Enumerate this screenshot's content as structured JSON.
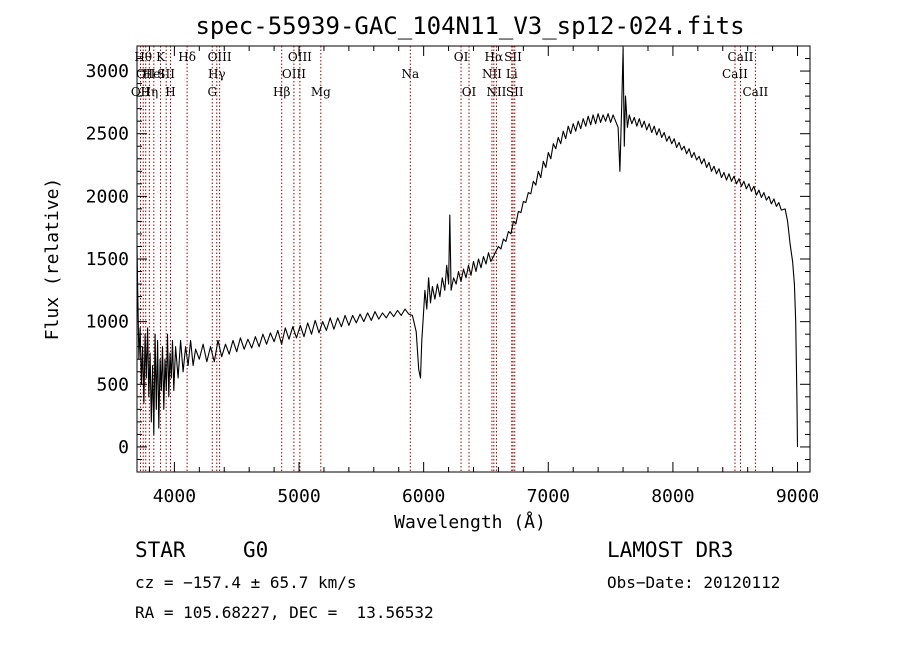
{
  "chart_data": {
    "type": "line",
    "title": "spec-55939-GAC_104N11_V3_sp12-024.fits",
    "xlabel": "Wavelength (Å)",
    "ylabel": "Flux (relative)",
    "xlim": [
      3700,
      9100
    ],
    "ylim": [
      -200,
      3200
    ],
    "x_ticks": [
      4000,
      5000,
      6000,
      7000,
      8000,
      9000
    ],
    "y_ticks": [
      0,
      500,
      1000,
      1500,
      2000,
      2500,
      3000
    ],
    "series": [
      {
        "name": "flux",
        "points": [
          [
            3700,
            1600
          ],
          [
            3705,
            1300
          ],
          [
            3715,
            700
          ],
          [
            3725,
            950
          ],
          [
            3735,
            500
          ],
          [
            3745,
            800
          ],
          [
            3755,
            350
          ],
          [
            3765,
            900
          ],
          [
            3775,
            550
          ],
          [
            3785,
            950
          ],
          [
            3795,
            400
          ],
          [
            3805,
            750
          ],
          [
            3815,
            200
          ],
          [
            3825,
            650
          ],
          [
            3835,
            100
          ],
          [
            3845,
            900
          ],
          [
            3855,
            300
          ],
          [
            3865,
            850
          ],
          [
            3875,
            150
          ],
          [
            3885,
            700
          ],
          [
            3895,
            450
          ],
          [
            3905,
            800
          ],
          [
            3915,
            300
          ],
          [
            3925,
            700
          ],
          [
            3935,
            450
          ],
          [
            3945,
            900
          ],
          [
            3955,
            400
          ],
          [
            3965,
            750
          ],
          [
            3975,
            550
          ],
          [
            3985,
            850
          ],
          [
            3995,
            450
          ],
          [
            4010,
            800
          ],
          [
            4030,
            550
          ],
          [
            4050,
            850
          ],
          [
            4070,
            600
          ],
          [
            4090,
            800
          ],
          [
            4110,
            650
          ],
          [
            4130,
            850
          ],
          [
            4150,
            650
          ],
          [
            4170,
            780
          ],
          [
            4200,
            700
          ],
          [
            4230,
            820
          ],
          [
            4260,
            680
          ],
          [
            4290,
            800
          ],
          [
            4320,
            680
          ],
          [
            4350,
            850
          ],
          [
            4380,
            720
          ],
          [
            4410,
            820
          ],
          [
            4440,
            740
          ],
          [
            4470,
            850
          ],
          [
            4500,
            760
          ],
          [
            4530,
            870
          ],
          [
            4560,
            780
          ],
          [
            4590,
            860
          ],
          [
            4620,
            790
          ],
          [
            4650,
            880
          ],
          [
            4680,
            800
          ],
          [
            4710,
            900
          ],
          [
            4740,
            820
          ],
          [
            4770,
            910
          ],
          [
            4800,
            840
          ],
          [
            4830,
            930
          ],
          [
            4860,
            820
          ],
          [
            4890,
            950
          ],
          [
            4920,
            860
          ],
          [
            4950,
            960
          ],
          [
            4980,
            870
          ],
          [
            5010,
            970
          ],
          [
            5040,
            880
          ],
          [
            5070,
            990
          ],
          [
            5100,
            900
          ],
          [
            5130,
            1010
          ],
          [
            5160,
            910
          ],
          [
            5190,
            1000
          ],
          [
            5220,
            930
          ],
          [
            5250,
            1030
          ],
          [
            5280,
            940
          ],
          [
            5310,
            1030
          ],
          [
            5340,
            960
          ],
          [
            5370,
            1050
          ],
          [
            5400,
            970
          ],
          [
            5430,
            1050
          ],
          [
            5460,
            990
          ],
          [
            5490,
            1060
          ],
          [
            5520,
            1000
          ],
          [
            5550,
            1070
          ],
          [
            5580,
            1010
          ],
          [
            5610,
            1080
          ],
          [
            5640,
            1020
          ],
          [
            5670,
            1070
          ],
          [
            5700,
            1030
          ],
          [
            5730,
            1080
          ],
          [
            5760,
            1040
          ],
          [
            5790,
            1090
          ],
          [
            5820,
            1050
          ],
          [
            5850,
            1100
          ],
          [
            5880,
            1060
          ],
          [
            5910,
            1050
          ],
          [
            5940,
            920
          ],
          [
            5960,
            620
          ],
          [
            5975,
            550
          ],
          [
            5985,
            850
          ],
          [
            5995,
            1000
          ],
          [
            6010,
            1250
          ],
          [
            6025,
            1100
          ],
          [
            6040,
            1350
          ],
          [
            6055,
            1150
          ],
          [
            6070,
            1280
          ],
          [
            6090,
            1180
          ],
          [
            6110,
            1300
          ],
          [
            6130,
            1200
          ],
          [
            6150,
            1350
          ],
          [
            6170,
            1250
          ],
          [
            6185,
            1450
          ],
          [
            6200,
            1300
          ],
          [
            6210,
            1850
          ],
          [
            6220,
            1250
          ],
          [
            6240,
            1350
          ],
          [
            6260,
            1300
          ],
          [
            6280,
            1400
          ],
          [
            6300,
            1320
          ],
          [
            6320,
            1420
          ],
          [
            6340,
            1350
          ],
          [
            6360,
            1450
          ],
          [
            6380,
            1370
          ],
          [
            6400,
            1480
          ],
          [
            6420,
            1400
          ],
          [
            6440,
            1500
          ],
          [
            6460,
            1430
          ],
          [
            6480,
            1520
          ],
          [
            6500,
            1460
          ],
          [
            6520,
            1550
          ],
          [
            6540,
            1480
          ],
          [
            6560,
            1520
          ],
          [
            6580,
            1560
          ],
          [
            6600,
            1600
          ],
          [
            6620,
            1580
          ],
          [
            6640,
            1660
          ],
          [
            6660,
            1640
          ],
          [
            6680,
            1720
          ],
          [
            6700,
            1700
          ],
          [
            6720,
            1800
          ],
          [
            6740,
            1780
          ],
          [
            6760,
            1880
          ],
          [
            6780,
            1870
          ],
          [
            6800,
            1960
          ],
          [
            6820,
            1950
          ],
          [
            6840,
            2030
          ],
          [
            6860,
            2020
          ],
          [
            6880,
            2120
          ],
          [
            6900,
            2090
          ],
          [
            6920,
            2200
          ],
          [
            6940,
            2150
          ],
          [
            6960,
            2280
          ],
          [
            6980,
            2230
          ],
          [
            7000,
            2350
          ],
          [
            7020,
            2300
          ],
          [
            7040,
            2420
          ],
          [
            7060,
            2380
          ],
          [
            7080,
            2470
          ],
          [
            7100,
            2420
          ],
          [
            7120,
            2520
          ],
          [
            7140,
            2460
          ],
          [
            7160,
            2560
          ],
          [
            7180,
            2500
          ],
          [
            7200,
            2580
          ],
          [
            7220,
            2520
          ],
          [
            7240,
            2600
          ],
          [
            7260,
            2540
          ],
          [
            7280,
            2620
          ],
          [
            7300,
            2560
          ],
          [
            7320,
            2640
          ],
          [
            7340,
            2570
          ],
          [
            7360,
            2650
          ],
          [
            7380,
            2580
          ],
          [
            7400,
            2660
          ],
          [
            7420,
            2590
          ],
          [
            7440,
            2650
          ],
          [
            7460,
            2600
          ],
          [
            7480,
            2660
          ],
          [
            7500,
            2590
          ],
          [
            7520,
            2650
          ],
          [
            7540,
            2600
          ],
          [
            7560,
            2550
          ],
          [
            7575,
            2200
          ],
          [
            7590,
            2750
          ],
          [
            7600,
            3180
          ],
          [
            7610,
            2400
          ],
          [
            7620,
            2800
          ],
          [
            7635,
            2550
          ],
          [
            7650,
            2650
          ],
          [
            7670,
            2580
          ],
          [
            7690,
            2630
          ],
          [
            7710,
            2560
          ],
          [
            7730,
            2620
          ],
          [
            7750,
            2550
          ],
          [
            7770,
            2600
          ],
          [
            7790,
            2530
          ],
          [
            7810,
            2580
          ],
          [
            7830,
            2510
          ],
          [
            7850,
            2560
          ],
          [
            7870,
            2490
          ],
          [
            7890,
            2540
          ],
          [
            7910,
            2470
          ],
          [
            7930,
            2510
          ],
          [
            7950,
            2440
          ],
          [
            7970,
            2480
          ],
          [
            7990,
            2420
          ],
          [
            8010,
            2460
          ],
          [
            8030,
            2390
          ],
          [
            8050,
            2430
          ],
          [
            8070,
            2370
          ],
          [
            8090,
            2400
          ],
          [
            8110,
            2340
          ],
          [
            8130,
            2380
          ],
          [
            8150,
            2310
          ],
          [
            8170,
            2350
          ],
          [
            8190,
            2290
          ],
          [
            8210,
            2320
          ],
          [
            8230,
            2260
          ],
          [
            8250,
            2300
          ],
          [
            8270,
            2230
          ],
          [
            8290,
            2270
          ],
          [
            8310,
            2200
          ],
          [
            8330,
            2240
          ],
          [
            8350,
            2180
          ],
          [
            8370,
            2220
          ],
          [
            8390,
            2150
          ],
          [
            8410,
            2190
          ],
          [
            8430,
            2130
          ],
          [
            8450,
            2180
          ],
          [
            8470,
            2120
          ],
          [
            8490,
            2160
          ],
          [
            8510,
            2100
          ],
          [
            8530,
            2140
          ],
          [
            8550,
            2080
          ],
          [
            8570,
            2120
          ],
          [
            8590,
            2060
          ],
          [
            8610,
            2100
          ],
          [
            8630,
            2040
          ],
          [
            8650,
            2080
          ],
          [
            8670,
            2010
          ],
          [
            8690,
            2050
          ],
          [
            8710,
            1990
          ],
          [
            8730,
            2030
          ],
          [
            8750,
            1970
          ],
          [
            8770,
            2000
          ],
          [
            8790,
            1940
          ],
          [
            8810,
            1980
          ],
          [
            8830,
            1920
          ],
          [
            8850,
            1950
          ],
          [
            8870,
            1890
          ],
          [
            8900,
            1900
          ],
          [
            8920,
            1800
          ],
          [
            8940,
            1620
          ],
          [
            8960,
            1480
          ],
          [
            8975,
            1300
          ],
          [
            8985,
            1000
          ],
          [
            8995,
            400
          ],
          [
            9000,
            0
          ]
        ]
      }
    ],
    "line_markers": [
      {
        "wavelength": 3728,
        "label": "OII",
        "row": 2
      },
      {
        "wavelength": 3750,
        "label": "Hθ",
        "row": 0
      },
      {
        "wavelength": 3770,
        "label": "OII",
        "row": 1
      },
      {
        "wavelength": 3799,
        "label": "Hη",
        "row": 2
      },
      {
        "wavelength": 3835,
        "label": "HeI",
        "row": 1
      },
      {
        "wavelength": 3889,
        "label": "K",
        "row": 0
      },
      {
        "wavelength": 3934,
        "label": "SII",
        "row": 1
      },
      {
        "wavelength": 3969,
        "label": "H",
        "row": 2
      },
      {
        "wavelength": 4102,
        "label": "Hδ",
        "row": 0
      },
      {
        "wavelength": 4304,
        "label": "G",
        "row": 2
      },
      {
        "wavelength": 4340,
        "label": "Hγ",
        "row": 1
      },
      {
        "wavelength": 4363,
        "label": "OIII",
        "row": 0
      },
      {
        "wavelength": 4861,
        "label": "Hβ",
        "row": 2
      },
      {
        "wavelength": 4959,
        "label": "OIII",
        "row": 1
      },
      {
        "wavelength": 5007,
        "label": "OIII",
        "row": 0
      },
      {
        "wavelength": 5175,
        "label": "Mg",
        "row": 2
      },
      {
        "wavelength": 5893,
        "label": "Na",
        "row": 1
      },
      {
        "wavelength": 6300,
        "label": "OI",
        "row": 0
      },
      {
        "wavelength": 6364,
        "label": "OI",
        "row": 2
      },
      {
        "wavelength": 6548,
        "label": "NII",
        "row": 1
      },
      {
        "wavelength": 6563,
        "label": "Hα",
        "row": 0
      },
      {
        "wavelength": 6584,
        "label": "NII",
        "row": 2
      },
      {
        "wavelength": 6707,
        "label": "Li",
        "row": 1
      },
      {
        "wavelength": 6717,
        "label": "SII",
        "row": 0
      },
      {
        "wavelength": 6731,
        "label": "SII",
        "row": 2
      },
      {
        "wavelength": 8498,
        "label": "CaII",
        "row": 1
      },
      {
        "wavelength": 8542,
        "label": "CaII",
        "row": 0
      },
      {
        "wavelength": 8662,
        "label": "CaII",
        "row": 2
      }
    ]
  },
  "info": {
    "object_class": "STAR",
    "subclass": "G0",
    "survey": "LAMOST DR3",
    "redshift": "cz = −157.4 ± 65.7 km/s",
    "obs_date": "Obs−Date: 20120112",
    "coordinates": "RA = 105.68227, DEC =  13.56532"
  },
  "colors": {
    "line": "#000000",
    "marker": "#a00000"
  }
}
